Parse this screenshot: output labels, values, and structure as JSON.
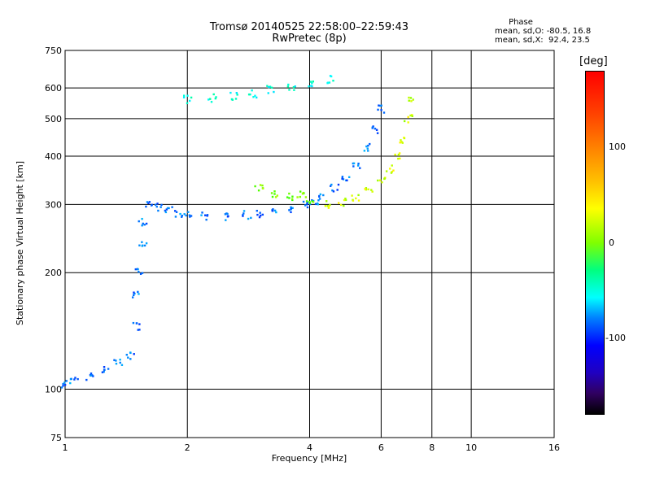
{
  "chart_data": {
    "type": "scatter",
    "title": "Tromsø 20140525 22:58:00–22:59:43",
    "subtitle": "RwPretec (8p)",
    "xlabel": "Frequency [MHz]",
    "ylabel": "Stationary phase Virtual Height [km]",
    "x_scale": "log",
    "y_scale": "log",
    "xlim": [
      1,
      16
    ],
    "ylim": [
      75,
      750
    ],
    "x_ticks": [
      "1",
      "2",
      "4",
      "6",
      "8",
      "10",
      "16"
    ],
    "y_ticks": [
      "75",
      "100",
      "200",
      "300",
      "400",
      "500",
      "600",
      "750"
    ],
    "grid": true,
    "colorbar": {
      "title": "[deg]",
      "ticks": [
        "100",
        "0",
        "-100"
      ],
      "range": [
        -180,
        180
      ]
    },
    "stats": {
      "heading": "Phase",
      "line1": "mean, sd,O: -80.5, 16.8",
      "line2": "mean, sd,X:  92.4, 23.5"
    },
    "traces": [
      {
        "name": "",
        "color_phase": -90,
        "points": [
          [
            1.0,
            103
          ],
          [
            1.05,
            106
          ],
          [
            1.15,
            108
          ],
          [
            1.25,
            112
          ],
          [
            1.35,
            118
          ],
          [
            1.45,
            122
          ],
          [
            1.5,
            145
          ],
          [
            1.5,
            175
          ],
          [
            1.52,
            200
          ],
          [
            1.55,
            240
          ],
          [
            1.55,
            270
          ],
          [
            1.6,
            300
          ],
          [
            1.7,
            295
          ],
          [
            1.8,
            290
          ],
          [
            1.9,
            285
          ],
          [
            2.0,
            282
          ],
          [
            2.2,
            280
          ],
          [
            2.5,
            280
          ],
          [
            2.8,
            282
          ],
          [
            3.0,
            284
          ],
          [
            3.3,
            287
          ],
          [
            3.6,
            292
          ],
          [
            3.9,
            298
          ],
          [
            4.1,
            305
          ],
          [
            4.3,
            315
          ],
          [
            4.6,
            330
          ],
          [
            4.9,
            350
          ],
          [
            5.2,
            380
          ],
          [
            5.5,
            420
          ],
          [
            5.8,
            470
          ],
          [
            6.0,
            530
          ]
        ]
      },
      {
        "name": "",
        "color_phase": 90,
        "points": [
          [
            4.4,
            300
          ],
          [
            4.8,
            305
          ],
          [
            5.2,
            312
          ],
          [
            5.6,
            325
          ],
          [
            6.0,
            345
          ],
          [
            6.3,
            370
          ],
          [
            6.6,
            400
          ],
          [
            6.8,
            440
          ],
          [
            7.0,
            500
          ],
          [
            7.1,
            560
          ]
        ]
      },
      {
        "name": "",
        "color_phase": 60,
        "points": [
          [
            3.0,
            330
          ],
          [
            3.3,
            320
          ],
          [
            3.6,
            315
          ],
          [
            3.8,
            320
          ],
          [
            4.0,
            310
          ]
        ]
      },
      {
        "name": "",
        "color_phase": -40,
        "points": [
          [
            2.0,
            560
          ],
          [
            2.3,
            565
          ],
          [
            2.6,
            570
          ],
          [
            2.9,
            580
          ],
          [
            3.2,
            595
          ],
          [
            3.6,
            605
          ],
          [
            4.0,
            615
          ],
          [
            4.5,
            630
          ]
        ]
      }
    ]
  }
}
